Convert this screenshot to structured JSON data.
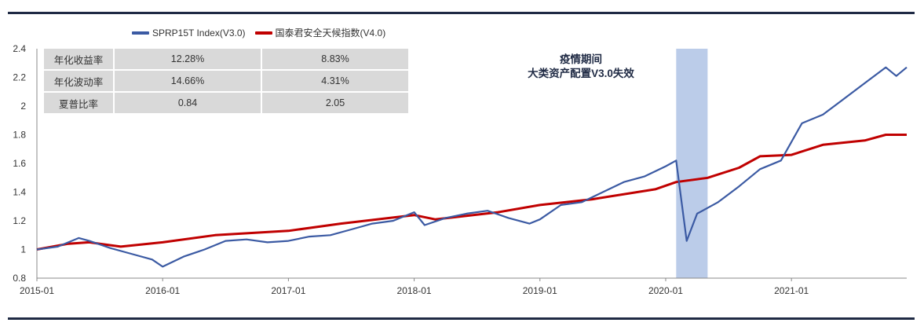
{
  "legend": [
    {
      "name": "SPRP15T Index(V3.0)",
      "color": "#3b5aa3"
    },
    {
      "name": "国泰君安全天候指数(V4.0)",
      "color": "#c00000"
    }
  ],
  "stats_table": {
    "rows": [
      {
        "label": "年化收益率",
        "v1": "12.28%",
        "v2": "8.83%"
      },
      {
        "label": "年化波动率",
        "v1": "14.66%",
        "v2": "4.31%"
      },
      {
        "label": "夏普比率",
        "v1": "0.84",
        "v2": "2.05"
      }
    ]
  },
  "annotation": {
    "line1": "疫情期间",
    "line2": "大类资产配置V3.0失效"
  },
  "chart_data": {
    "type": "line",
    "title": "",
    "xlabel": "",
    "ylabel": "",
    "ylim": [
      0.8,
      2.4
    ],
    "yticks": [
      0.8,
      1,
      1.2,
      1.4,
      1.6,
      1.8,
      2,
      2.2,
      2.4
    ],
    "xlim": [
      "2015-01",
      "2021-12"
    ],
    "xticks": [
      "2015-01",
      "2016-01",
      "2017-01",
      "2018-01",
      "2019-01",
      "2020-01",
      "2021-01"
    ],
    "highlight_band": {
      "start": "2020-02",
      "end": "2020-05",
      "color": "#b4c6e7"
    },
    "grid": false,
    "legend_position": "top",
    "series": [
      {
        "name": "SPRP15T Index(V3.0)",
        "color": "#3b5aa3",
        "points": [
          [
            "2015-01",
            1.0
          ],
          [
            "2015-03",
            1.02
          ],
          [
            "2015-05",
            1.08
          ],
          [
            "2015-06",
            1.06
          ],
          [
            "2015-08",
            1.01
          ],
          [
            "2015-10",
            0.97
          ],
          [
            "2015-12",
            0.93
          ],
          [
            "2016-01",
            0.88
          ],
          [
            "2016-03",
            0.95
          ],
          [
            "2016-05",
            1.0
          ],
          [
            "2016-07",
            1.06
          ],
          [
            "2016-09",
            1.07
          ],
          [
            "2016-11",
            1.05
          ],
          [
            "2017-01",
            1.06
          ],
          [
            "2017-03",
            1.09
          ],
          [
            "2017-05",
            1.1
          ],
          [
            "2017-07",
            1.14
          ],
          [
            "2017-09",
            1.18
          ],
          [
            "2017-11",
            1.2
          ],
          [
            "2018-01",
            1.26
          ],
          [
            "2018-02",
            1.17
          ],
          [
            "2018-04",
            1.22
          ],
          [
            "2018-06",
            1.25
          ],
          [
            "2018-08",
            1.27
          ],
          [
            "2018-10",
            1.22
          ],
          [
            "2018-12",
            1.18
          ],
          [
            "2019-01",
            1.21
          ],
          [
            "2019-03",
            1.31
          ],
          [
            "2019-05",
            1.33
          ],
          [
            "2019-07",
            1.4
          ],
          [
            "2019-09",
            1.47
          ],
          [
            "2019-11",
            1.51
          ],
          [
            "2020-01",
            1.58
          ],
          [
            "2020-02",
            1.62
          ],
          [
            "2020-03",
            1.06
          ],
          [
            "2020-04",
            1.25
          ],
          [
            "2020-06",
            1.33
          ],
          [
            "2020-08",
            1.44
          ],
          [
            "2020-10",
            1.56
          ],
          [
            "2020-12",
            1.62
          ],
          [
            "2021-02",
            1.88
          ],
          [
            "2021-04",
            1.94
          ],
          [
            "2021-06",
            2.05
          ],
          [
            "2021-08",
            2.16
          ],
          [
            "2021-10",
            2.27
          ],
          [
            "2021-11",
            2.21
          ],
          [
            "2021-12",
            2.27
          ]
        ]
      },
      {
        "name": "国泰君安全天候指数(V4.0)",
        "color": "#c00000",
        "points": [
          [
            "2015-01",
            1.0
          ],
          [
            "2015-04",
            1.04
          ],
          [
            "2015-06",
            1.05
          ],
          [
            "2015-09",
            1.02
          ],
          [
            "2016-01",
            1.05
          ],
          [
            "2016-06",
            1.1
          ],
          [
            "2017-01",
            1.13
          ],
          [
            "2017-06",
            1.18
          ],
          [
            "2018-01",
            1.24
          ],
          [
            "2018-03",
            1.21
          ],
          [
            "2018-09",
            1.26
          ],
          [
            "2019-01",
            1.31
          ],
          [
            "2019-06",
            1.35
          ],
          [
            "2019-12",
            1.42
          ],
          [
            "2020-02",
            1.47
          ],
          [
            "2020-05",
            1.5
          ],
          [
            "2020-08",
            1.57
          ],
          [
            "2020-10",
            1.65
          ],
          [
            "2021-01",
            1.66
          ],
          [
            "2021-04",
            1.73
          ],
          [
            "2021-08",
            1.76
          ],
          [
            "2021-10",
            1.8
          ],
          [
            "2021-12",
            1.8
          ]
        ]
      }
    ]
  }
}
